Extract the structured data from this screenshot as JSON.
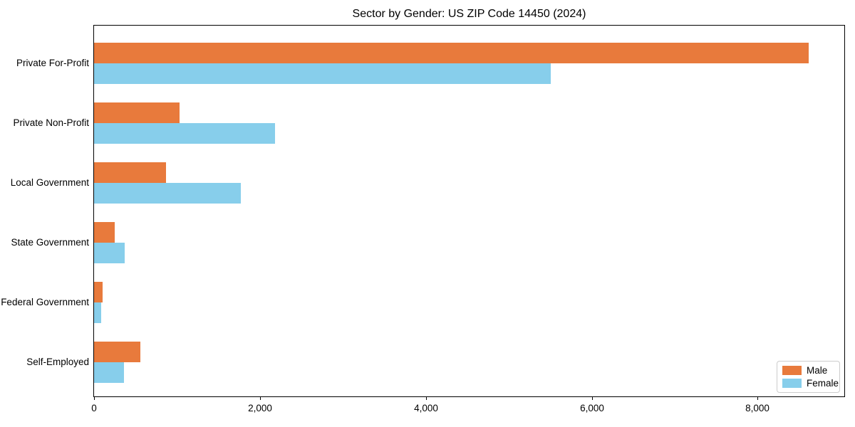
{
  "chart_data": {
    "type": "bar",
    "orientation": "horizontal",
    "title": "Sector by Gender: US ZIP Code 14450 (2024)",
    "categories": [
      "Private For-Profit",
      "Private Non-Profit",
      "Local Government",
      "State Government",
      "Federal Government",
      "Self-Employed"
    ],
    "series": [
      {
        "name": "Male",
        "color": "#e87a3c",
        "values": [
          8615,
          1035,
          870,
          245,
          100,
          555
        ]
      },
      {
        "name": "Female",
        "color": "#87ceeb",
        "values": [
          5510,
          2185,
          1770,
          370,
          90,
          360
        ]
      }
    ],
    "xlabel": "",
    "ylabel": "",
    "xlim": [
      0,
      9045
    ],
    "x_ticks": [
      0,
      2000,
      4000,
      6000,
      8000
    ],
    "x_tick_labels": [
      "0",
      "2,000",
      "4,000",
      "6,000",
      "8,000"
    ],
    "grid": false,
    "legend_position": "lower right",
    "spine_color": "#000000",
    "background_color": "#ffffff"
  }
}
